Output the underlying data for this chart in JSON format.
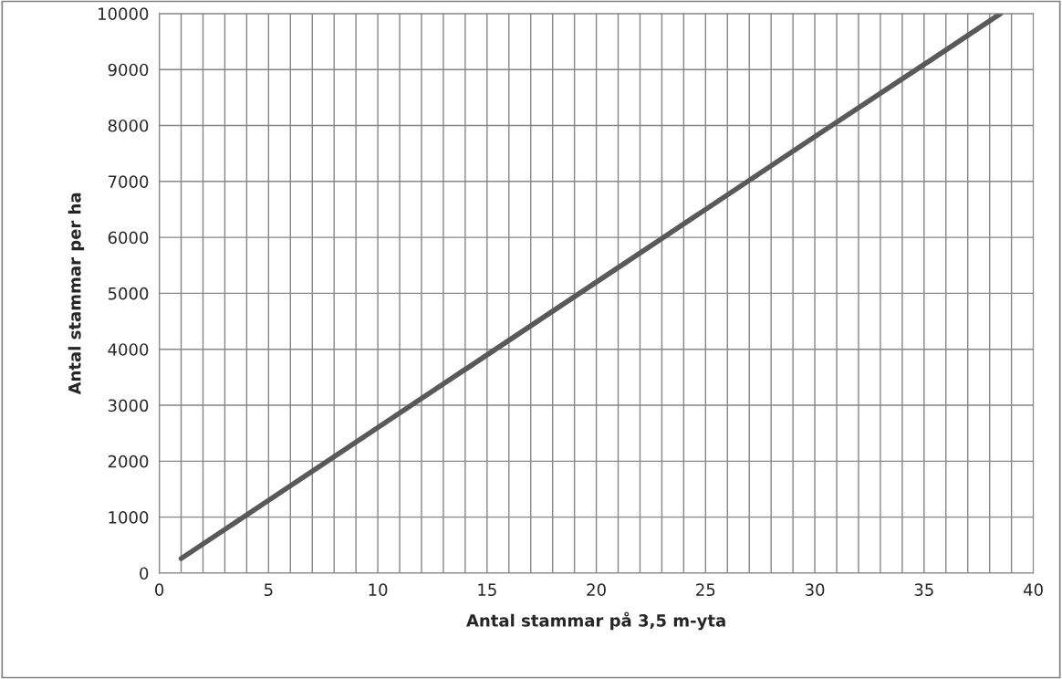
{
  "chart_data": {
    "type": "line",
    "xlabel": "Antal stammar på 3,5 m-yta",
    "ylabel": "Antal stammar per ha",
    "series": [
      {
        "color": "#595959",
        "x": [
          1,
          5,
          10,
          15,
          20,
          25,
          30,
          35,
          38.5
        ],
        "values": [
          260,
          1300,
          2600,
          3900,
          5200,
          6500,
          7800,
          9090,
          10000
        ]
      }
    ],
    "xlim": [
      0,
      40
    ],
    "ylim": [
      0,
      10000
    ],
    "xticks": [
      0,
      {
        "value": 1,
        "label": null
      },
      {
        "value": 2,
        "label": null
      },
      {
        "value": 3,
        "label": null
      },
      {
        "value": 4,
        "label": null
      },
      5,
      {
        "value": 6,
        "label": null
      },
      {
        "value": 7,
        "label": null
      },
      {
        "value": 8,
        "label": null
      },
      {
        "value": 9,
        "label": null
      },
      10,
      {
        "value": 11,
        "label": null
      },
      {
        "value": 12,
        "label": null
      },
      {
        "value": 13,
        "label": null
      },
      {
        "value": 14,
        "label": null
      },
      15,
      {
        "value": 16,
        "label": null
      },
      {
        "value": 17,
        "label": null
      },
      {
        "value": 18,
        "label": null
      },
      {
        "value": 19,
        "label": null
      },
      20,
      {
        "value": 21,
        "label": null
      },
      {
        "value": 22,
        "label": null
      },
      {
        "value": 23,
        "label": null
      },
      {
        "value": 24,
        "label": null
      },
      25,
      {
        "value": 26,
        "label": null
      },
      {
        "value": 27,
        "label": null
      },
      {
        "value": 28,
        "label": null
      },
      {
        "value": 29,
        "label": null
      },
      30,
      {
        "value": 31,
        "label": null
      },
      {
        "value": 32,
        "label": null
      },
      {
        "value": 33,
        "label": null
      },
      {
        "value": 34,
        "label": null
      },
      35,
      {
        "value": 36,
        "label": null
      },
      {
        "value": 37,
        "label": null
      },
      {
        "value": 38,
        "label": null
      },
      {
        "value": 39,
        "label": null
      },
      40
    ],
    "yticks": [
      0,
      1000,
      2000,
      3000,
      4000,
      5000,
      6000,
      7000,
      8000,
      9000,
      10000
    ],
    "grid": true,
    "legend": false,
    "marker": "none",
    "line_style": "solid"
  }
}
